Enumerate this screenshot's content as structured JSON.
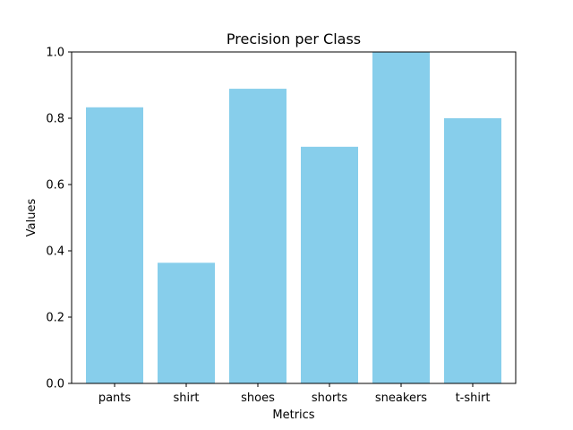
{
  "chart_data": {
    "type": "bar",
    "title": "Precision per Class",
    "xlabel": "Metrics",
    "ylabel": "Values",
    "categories": [
      "pants",
      "shirt",
      "shoes",
      "shorts",
      "sneakers",
      "t-shirt"
    ],
    "values": [
      0.833,
      0.364,
      0.889,
      0.714,
      1.0,
      0.8
    ],
    "ylim": [
      0,
      1.0
    ],
    "yticks": [
      "0.0",
      "0.2",
      "0.4",
      "0.6",
      "0.8",
      "1.0"
    ],
    "grid": false,
    "bar_color": "#87ceeb"
  }
}
